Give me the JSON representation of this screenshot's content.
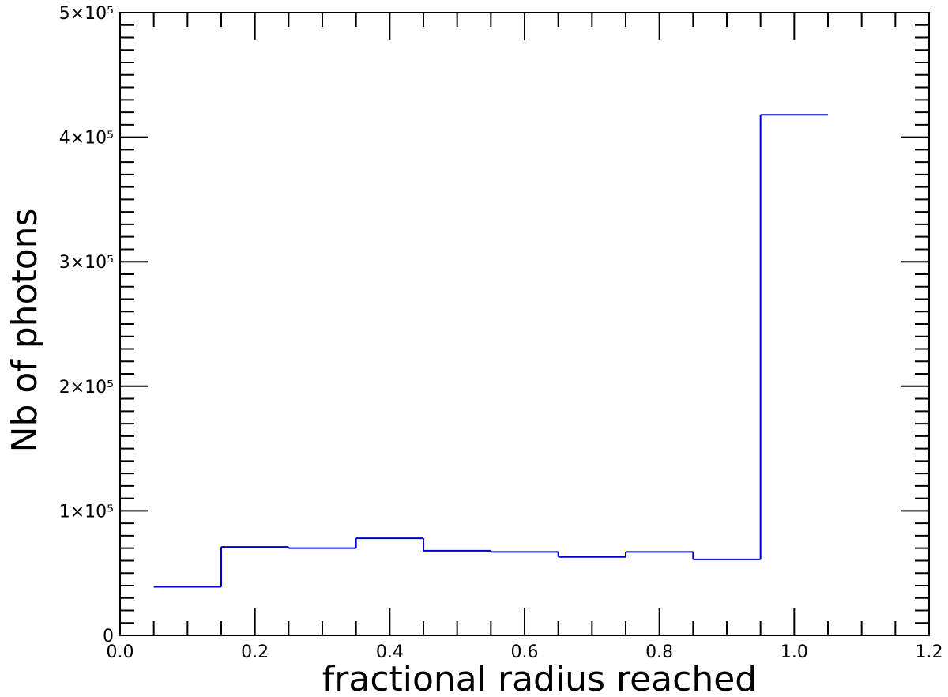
{
  "chart_data": {
    "type": "histogram",
    "x_label": "fractional radius reached",
    "y_label": "Nb of photons",
    "bins": [
      0.05,
      0.15,
      0.25,
      0.35,
      0.45,
      0.55,
      0.65,
      0.75,
      0.85,
      0.95,
      1.05
    ],
    "values": [
      39000,
      71000,
      70000,
      78000,
      68000,
      67000,
      63000,
      67000,
      61000,
      418000
    ],
    "color": "#0000cc",
    "xlim": [
      0,
      1.2
    ],
    "xticks": [
      {
        "value": 0,
        "label": "0.0"
      },
      0.2,
      0.4,
      0.6,
      0.8,
      {
        "value": 1,
        "label": "1.0"
      },
      1.2
    ],
    "ylim": [
      0,
      500000
    ],
    "yticks": [
      0,
      {
        "value": 100000,
        "label": "1×10⁵"
      },
      {
        "value": 200000,
        "label": "2×10⁵"
      },
      {
        "value": 300000,
        "label": "3×10⁵"
      },
      {
        "value": 400000,
        "label": "4×10⁵"
      },
      {
        "value": 500000,
        "label": "5×10⁵"
      }
    ]
  }
}
